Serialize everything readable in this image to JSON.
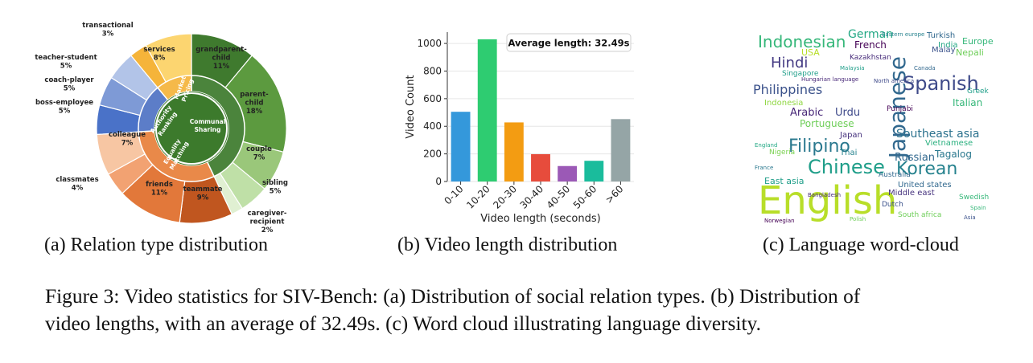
{
  "figure": {
    "subcaption_a": "(a)  Relation type distribution",
    "subcaption_b": "(b)  Video length distribution",
    "subcaption_c": "(c)  Language word-cloud",
    "caption_line1": "Figure 3: Video statistics for SIV-Bench: (a) Distribution of social relation types. (b) Distribution of",
    "caption_line2": "video lengths, with an average of 32.49s. (c) Word cloud illustrating language diversity."
  },
  "chart_data": [
    {
      "type": "pie",
      "inner_groups": [
        {
          "name": "Market Pricing",
          "color": "#f5b43a"
        },
        {
          "name": "Authority Ranking",
          "color": "#4f72c4"
        },
        {
          "name": "Equality Matching",
          "color": "#e8803a"
        },
        {
          "name": "Communal Sharing",
          "color": "#3c7a2c"
        }
      ],
      "slices": [
        {
          "name": "grandparent-child",
          "value": 11,
          "label": "11%",
          "color": "#3f7a2e",
          "group": "Communal Sharing"
        },
        {
          "name": "parent-child",
          "value": 18,
          "label": "18%",
          "color": "#5c9a3f",
          "group": "Communal Sharing"
        },
        {
          "name": "couple",
          "value": 7,
          "label": "7%",
          "color": "#9ac77a",
          "group": "Communal Sharing"
        },
        {
          "name": "sibling",
          "value": 5,
          "label": "5%",
          "color": "#bfe0a7",
          "group": "Communal Sharing"
        },
        {
          "name": "caregiver-recipient",
          "value": 2,
          "label": "2%",
          "color": "#e0f0d2",
          "group": "Communal Sharing"
        },
        {
          "name": "teammate",
          "value": 9,
          "label": "9%",
          "color": "#c0561f",
          "group": "Equality Matching"
        },
        {
          "name": "friends",
          "value": 11,
          "label": "11%",
          "color": "#e2783a",
          "group": "Equality Matching"
        },
        {
          "name": "classmates",
          "value": 4,
          "label": "4%",
          "color": "#f2a272",
          "group": "Equality Matching"
        },
        {
          "name": "colleague",
          "value": 7,
          "label": "7%",
          "color": "#f7c6a3",
          "group": "Equality Matching"
        },
        {
          "name": "boss-employee",
          "value": 5,
          "label": "5%",
          "color": "#4a72c8",
          "group": "Authority Ranking"
        },
        {
          "name": "coach-player",
          "value": 5,
          "label": "5%",
          "color": "#7e9ad6",
          "group": "Authority Ranking"
        },
        {
          "name": "teacher-student",
          "value": 5,
          "label": "5%",
          "color": "#b2c4e8",
          "group": "Authority Ranking"
        },
        {
          "name": "transactional",
          "value": 3,
          "label": "3%",
          "color": "#f5b43a",
          "group": "Market Pricing"
        },
        {
          "name": "services",
          "value": 8,
          "label": "8%",
          "color": "#fcd570",
          "group": "Market Pricing"
        }
      ]
    },
    {
      "type": "bar",
      "categories": [
        "0-10",
        "10-20",
        "20-30",
        "30-40",
        "40-50",
        "50-60",
        ">60"
      ],
      "values": [
        505,
        1030,
        428,
        198,
        112,
        150,
        452
      ],
      "colors": [
        "#3498db",
        "#2ecc71",
        "#f39c12",
        "#e74c3c",
        "#9b59b6",
        "#1abc9c",
        "#95a5a6"
      ],
      "xlabel": "Video length (seconds)",
      "ylabel": "Video Count",
      "yticks": [
        0,
        200,
        400,
        600,
        800,
        1000
      ],
      "ylim": [
        0,
        1082
      ],
      "grid": true,
      "annotation": "Average length: 32.49s"
    }
  ],
  "wordcloud": {
    "words": [
      {
        "text": "English",
        "color": "#b8de29",
        "weight": "heavy"
      },
      {
        "text": "Japanese",
        "color": "#31688e",
        "weight": "large"
      },
      {
        "text": "Chinese",
        "color": "#1f9e89",
        "weight": "large"
      },
      {
        "text": "Korean",
        "color": "#26828e",
        "weight": "large"
      },
      {
        "text": "Filipino",
        "color": "#2a788e",
        "weight": "large"
      },
      {
        "text": "Spanish",
        "color": "#3e4a89",
        "weight": "large"
      },
      {
        "text": "Indonesian",
        "color": "#35b779",
        "weight": "large"
      },
      {
        "text": "Hindi",
        "color": "#443a83",
        "weight": "medium"
      },
      {
        "text": "Philippines",
        "color": "#3b528b",
        "weight": "medium"
      },
      {
        "text": "Southeast asia",
        "color": "#2c728e",
        "weight": "medium"
      },
      {
        "text": "Russian",
        "color": "#31688e",
        "weight": "medium"
      },
      {
        "text": "German",
        "color": "#22a884",
        "weight": "medium"
      },
      {
        "text": "Portuguese",
        "color": "#6ece58",
        "weight": "medium"
      },
      {
        "text": "Arabic",
        "color": "#482878",
        "weight": "medium"
      },
      {
        "text": "Urdu",
        "color": "#3e4989",
        "weight": "medium"
      },
      {
        "text": "Tagalog",
        "color": "#2a788e",
        "weight": "medium"
      },
      {
        "text": "Italian",
        "color": "#35b779",
        "weight": "small"
      },
      {
        "text": "Indonesia",
        "color": "#90d743",
        "weight": "small"
      },
      {
        "text": "French",
        "color": "#440154",
        "weight": "small"
      },
      {
        "text": "Turkish",
        "color": "#31688e",
        "weight": "small"
      },
      {
        "text": "India",
        "color": "#22a884",
        "weight": "small"
      },
      {
        "text": "Europe",
        "color": "#35b779",
        "weight": "small"
      },
      {
        "text": "Malay",
        "color": "#3b528b",
        "weight": "small"
      },
      {
        "text": "Nepali",
        "color": "#6ece58",
        "weight": "small"
      },
      {
        "text": "Kazakhstan",
        "color": "#472c7a",
        "weight": "small"
      },
      {
        "text": "Singapore",
        "color": "#1f9e89",
        "weight": "small"
      },
      {
        "text": "Japan",
        "color": "#46327e",
        "weight": "small"
      },
      {
        "text": "Thai",
        "color": "#26828e",
        "weight": "small"
      },
      {
        "text": "Vietnamese",
        "color": "#2ab07f",
        "weight": "small"
      },
      {
        "text": "Middle east",
        "color": "#46337e",
        "weight": "small"
      },
      {
        "text": "East asia",
        "color": "#1f9e89",
        "weight": "small"
      },
      {
        "text": "United states",
        "color": "#31688e",
        "weight": "small"
      },
      {
        "text": "Nigeria",
        "color": "#7ad151",
        "weight": "small"
      },
      {
        "text": "Punjabi",
        "color": "#440154",
        "weight": "small"
      },
      {
        "text": "USA",
        "color": "#b8de29",
        "weight": "small"
      },
      {
        "text": "Dutch",
        "color": "#3b528b",
        "weight": "small"
      },
      {
        "text": "South africa",
        "color": "#6ece58",
        "weight": "small"
      },
      {
        "text": "Swedish",
        "color": "#35b779",
        "weight": "small"
      },
      {
        "text": "Australia",
        "color": "#31688e",
        "weight": "small"
      },
      {
        "text": "Greek",
        "color": "#1f9e89",
        "weight": "small"
      },
      {
        "text": "Hungarian language",
        "color": "#482878",
        "weight": "tiny"
      },
      {
        "text": "North america",
        "color": "#3e4989",
        "weight": "tiny"
      },
      {
        "text": "Eastern europe",
        "color": "#26828e",
        "weight": "tiny"
      },
      {
        "text": "England",
        "color": "#22a884",
        "weight": "tiny"
      },
      {
        "text": "France",
        "color": "#2a788e",
        "weight": "tiny"
      },
      {
        "text": "Norwegian",
        "color": "#440154",
        "weight": "tiny"
      },
      {
        "text": "Spain",
        "color": "#35b779",
        "weight": "tiny"
      },
      {
        "text": "Asia",
        "color": "#3b528b",
        "weight": "tiny"
      },
      {
        "text": "Malaysia",
        "color": "#1f9e89",
        "weight": "tiny"
      },
      {
        "text": "Polish",
        "color": "#6ece58",
        "weight": "tiny"
      },
      {
        "text": "Bangladesh",
        "color": "#472c7a",
        "weight": "tiny"
      },
      {
        "text": "Canada",
        "color": "#31688e",
        "weight": "tiny"
      }
    ]
  }
}
